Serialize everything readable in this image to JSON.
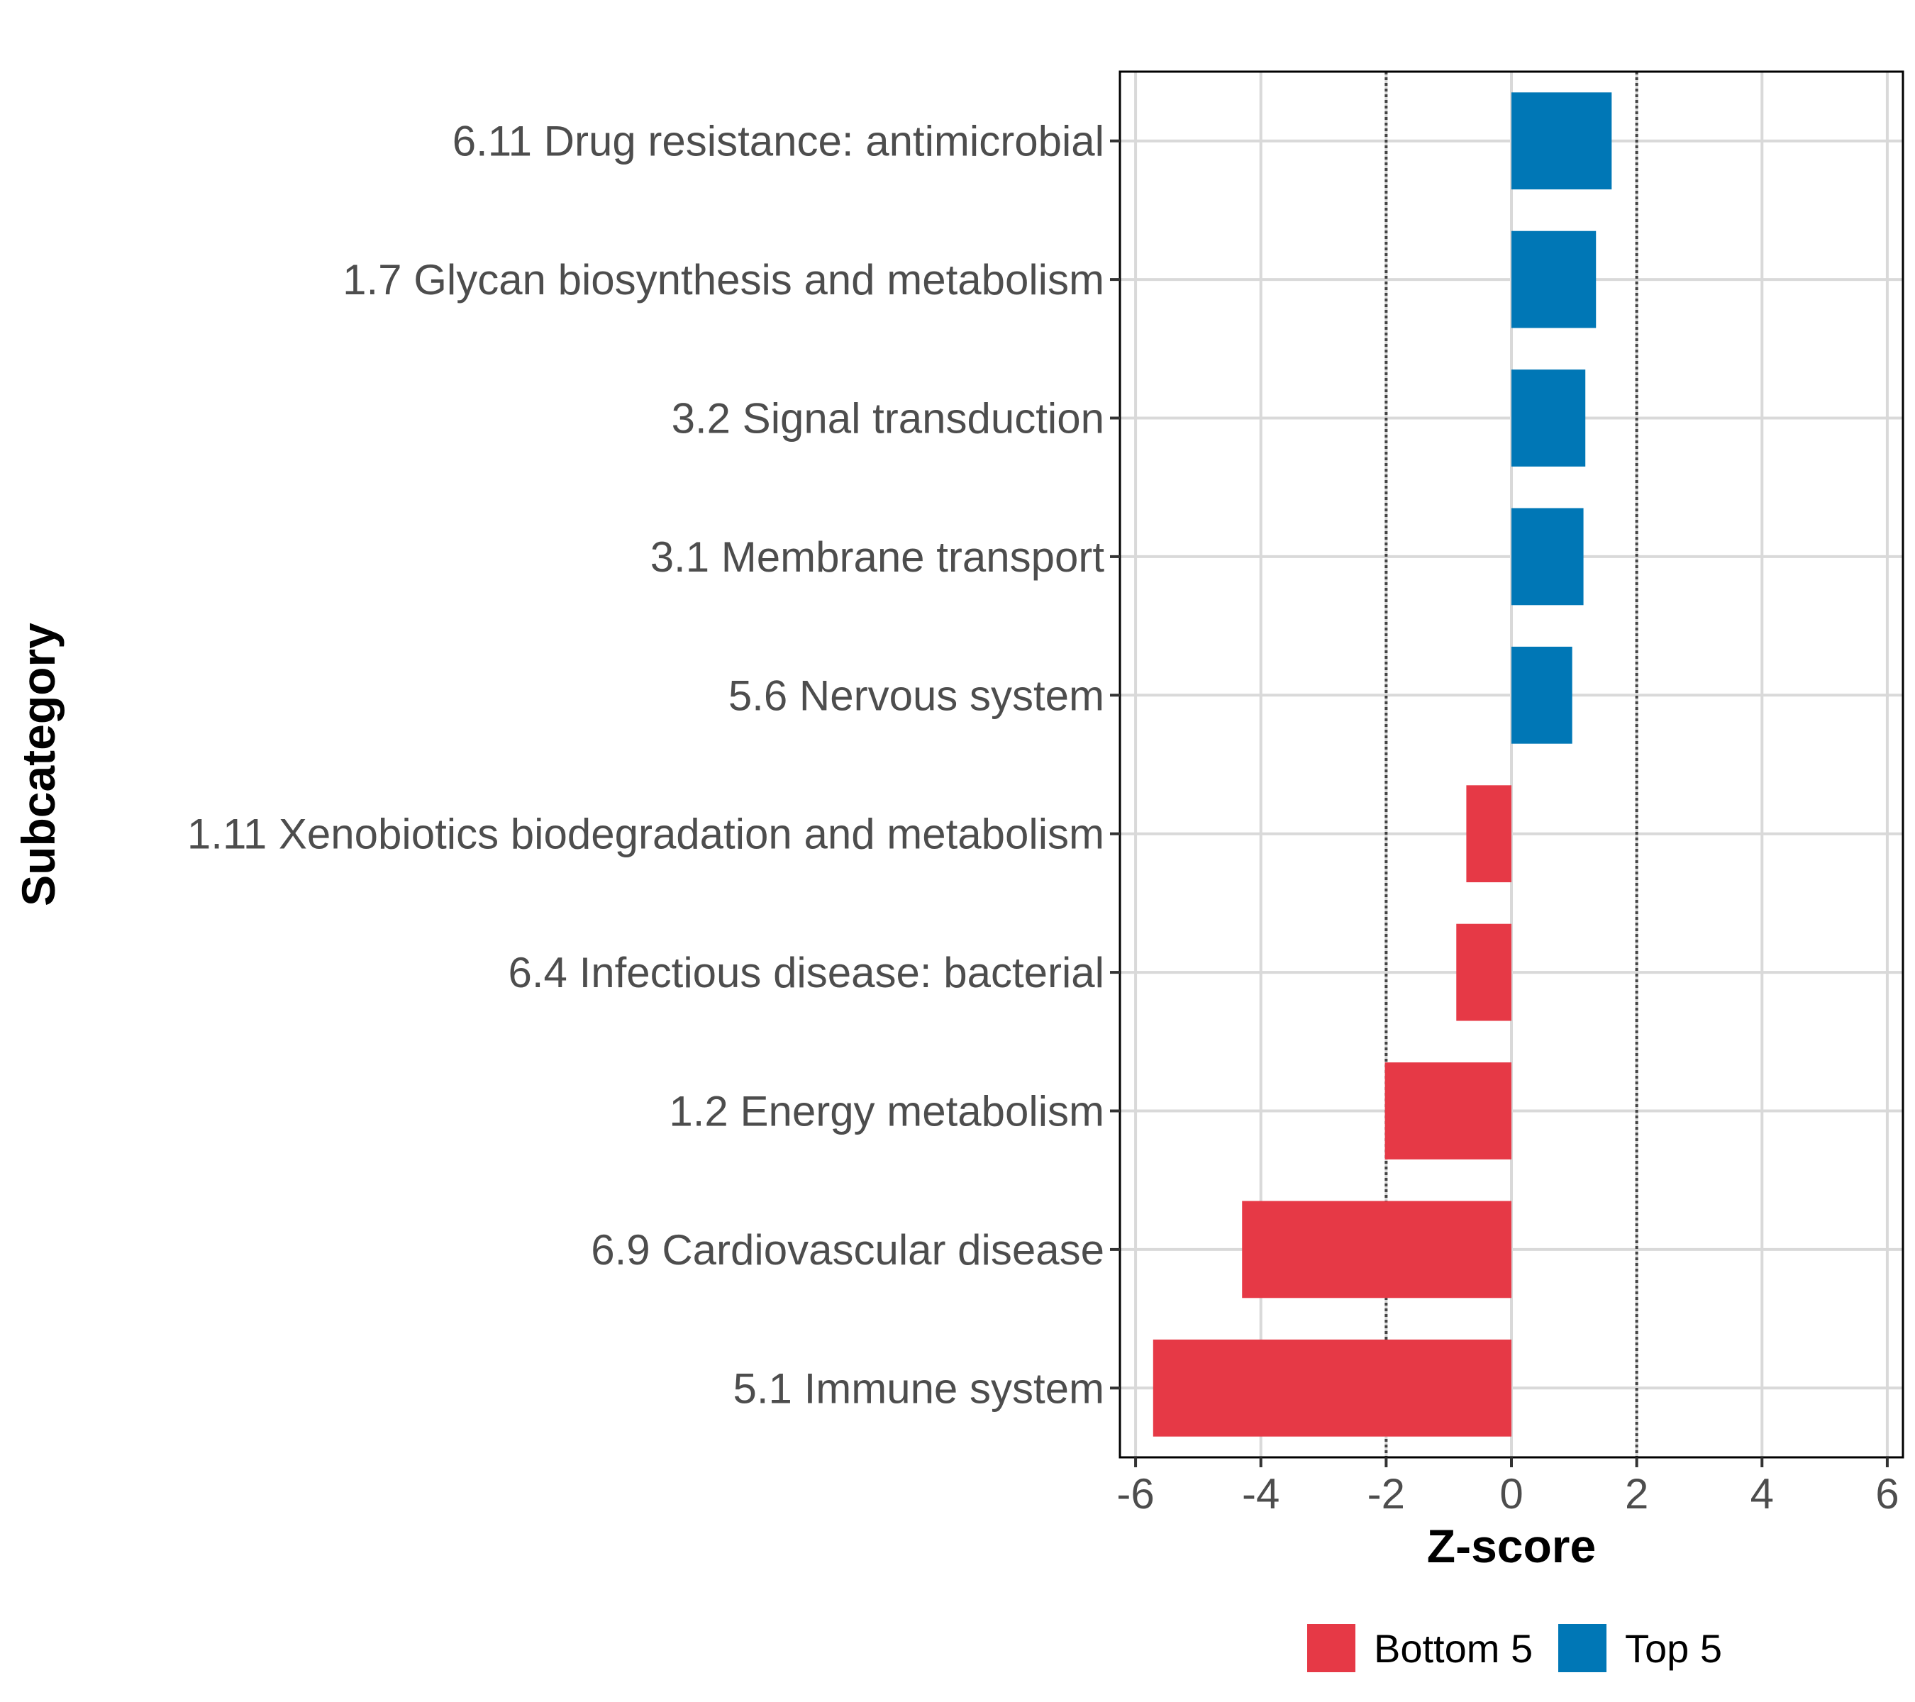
{
  "chart_data": {
    "type": "bar",
    "orientation": "horizontal",
    "categories": [
      "6.11 Drug resistance: antimicrobial",
      "1.7 Glycan biosynthesis and metabolism",
      "3.2 Signal transduction",
      "3.1 Membrane transport",
      "5.6 Nervous system",
      "1.11 Xenobiotics biodegradation and metabolism",
      "6.4 Infectious disease: bacterial",
      "1.2 Energy metabolism",
      "6.9 Cardiovascular disease",
      "5.1 Immune system"
    ],
    "values": [
      1.6,
      1.35,
      1.18,
      1.15,
      0.97,
      -0.72,
      -0.88,
      -2.02,
      -4.3,
      -5.72
    ],
    "groups": [
      "Top 5",
      "Top 5",
      "Top 5",
      "Top 5",
      "Top 5",
      "Bottom 5",
      "Bottom 5",
      "Bottom 5",
      "Bottom 5",
      "Bottom 5"
    ],
    "xlabel": "Z-score",
    "ylabel": "Subcategory",
    "xlim": [
      -6.25,
      6.25
    ],
    "x_ticks": [
      "-6",
      "-4",
      "-2",
      "0",
      "2",
      "4",
      "6"
    ],
    "x_tick_values": [
      -6,
      -4,
      -2,
      0,
      2,
      4,
      6
    ],
    "reference_lines": [
      -2,
      2
    ],
    "grid": true,
    "legend": {
      "position": "bottom",
      "entries": [
        {
          "label": "Bottom 5",
          "color": "#e63946"
        },
        {
          "label": "Top 5",
          "color": "#0077b6"
        }
      ]
    },
    "colors": {
      "Bottom 5": "#e63946",
      "Top 5": "#0077b6"
    }
  }
}
